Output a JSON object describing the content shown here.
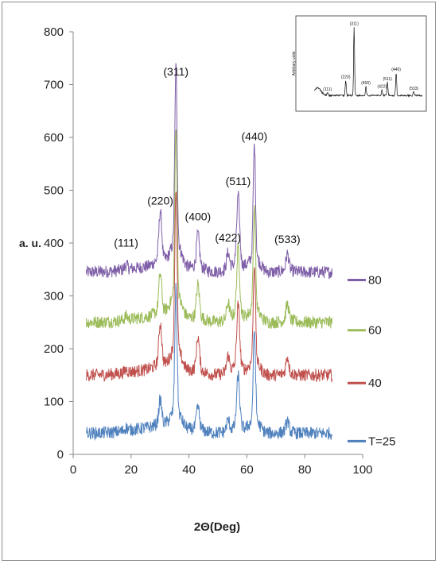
{
  "chart_data": [
    {
      "type": "line",
      "title": "",
      "xlabel": "2Θ(Deg)",
      "ylabel": "a. u.",
      "xlim": [
        0,
        100
      ],
      "ylim": [
        0,
        800
      ],
      "x_ticks": [
        "0",
        "20",
        "40",
        "60",
        "80",
        "100"
      ],
      "y_ticks": [
        "0",
        "100",
        "200",
        "300",
        "400",
        "500",
        "600",
        "700",
        "800"
      ],
      "grid": false,
      "legend_position": "right",
      "peaks": [
        {
          "label": "(111)",
          "x": 18.3
        },
        {
          "label": "(220)",
          "x": 30.1
        },
        {
          "label": "(311)",
          "x": 35.5
        },
        {
          "label": "(400)",
          "x": 43.1
        },
        {
          "label": "(422)",
          "x": 53.5
        },
        {
          "label": "(511)",
          "x": 57.0
        },
        {
          "label": "(440)",
          "x": 62.6
        },
        {
          "label": "(533)",
          "x": 74.0
        }
      ],
      "series": [
        {
          "name": "80",
          "color": "#7f5fa8",
          "baseline": 345,
          "peak_heights": [
            8,
            90,
            330,
            60,
            30,
            125,
            210,
            30
          ]
        },
        {
          "name": "60",
          "color": "#9bbb59",
          "baseline": 250,
          "peak_heights": [
            6,
            70,
            310,
            60,
            30,
            120,
            190,
            30
          ]
        },
        {
          "name": "40",
          "color": "#c0504d",
          "baseline": 150,
          "peak_heights": [
            5,
            75,
            300,
            60,
            30,
            115,
            185,
            30
          ]
        },
        {
          "name": "T=25",
          "color": "#4f81bd",
          "baseline": 40,
          "peak_heights": [
            5,
            45,
            230,
            40,
            20,
            95,
            170,
            20
          ]
        }
      ]
    },
    {
      "type": "line",
      "title": "",
      "ylabel": "Arbitrary units",
      "xlim": [
        0,
        80
      ],
      "peak_labels": [
        "(111)",
        "(220)",
        "(311)",
        "(400)",
        "(422)",
        "(511)",
        "(440)",
        "(533)"
      ],
      "series": [
        {
          "name": "",
          "color": "#111111",
          "peak_x": [
            18.3,
            30.1,
            35.5,
            43.1,
            53.5,
            57.0,
            62.6,
            74.0
          ],
          "peak_heights": [
            3,
            16,
            72,
            10,
            6,
            14,
            24,
            4
          ]
        }
      ]
    }
  ]
}
